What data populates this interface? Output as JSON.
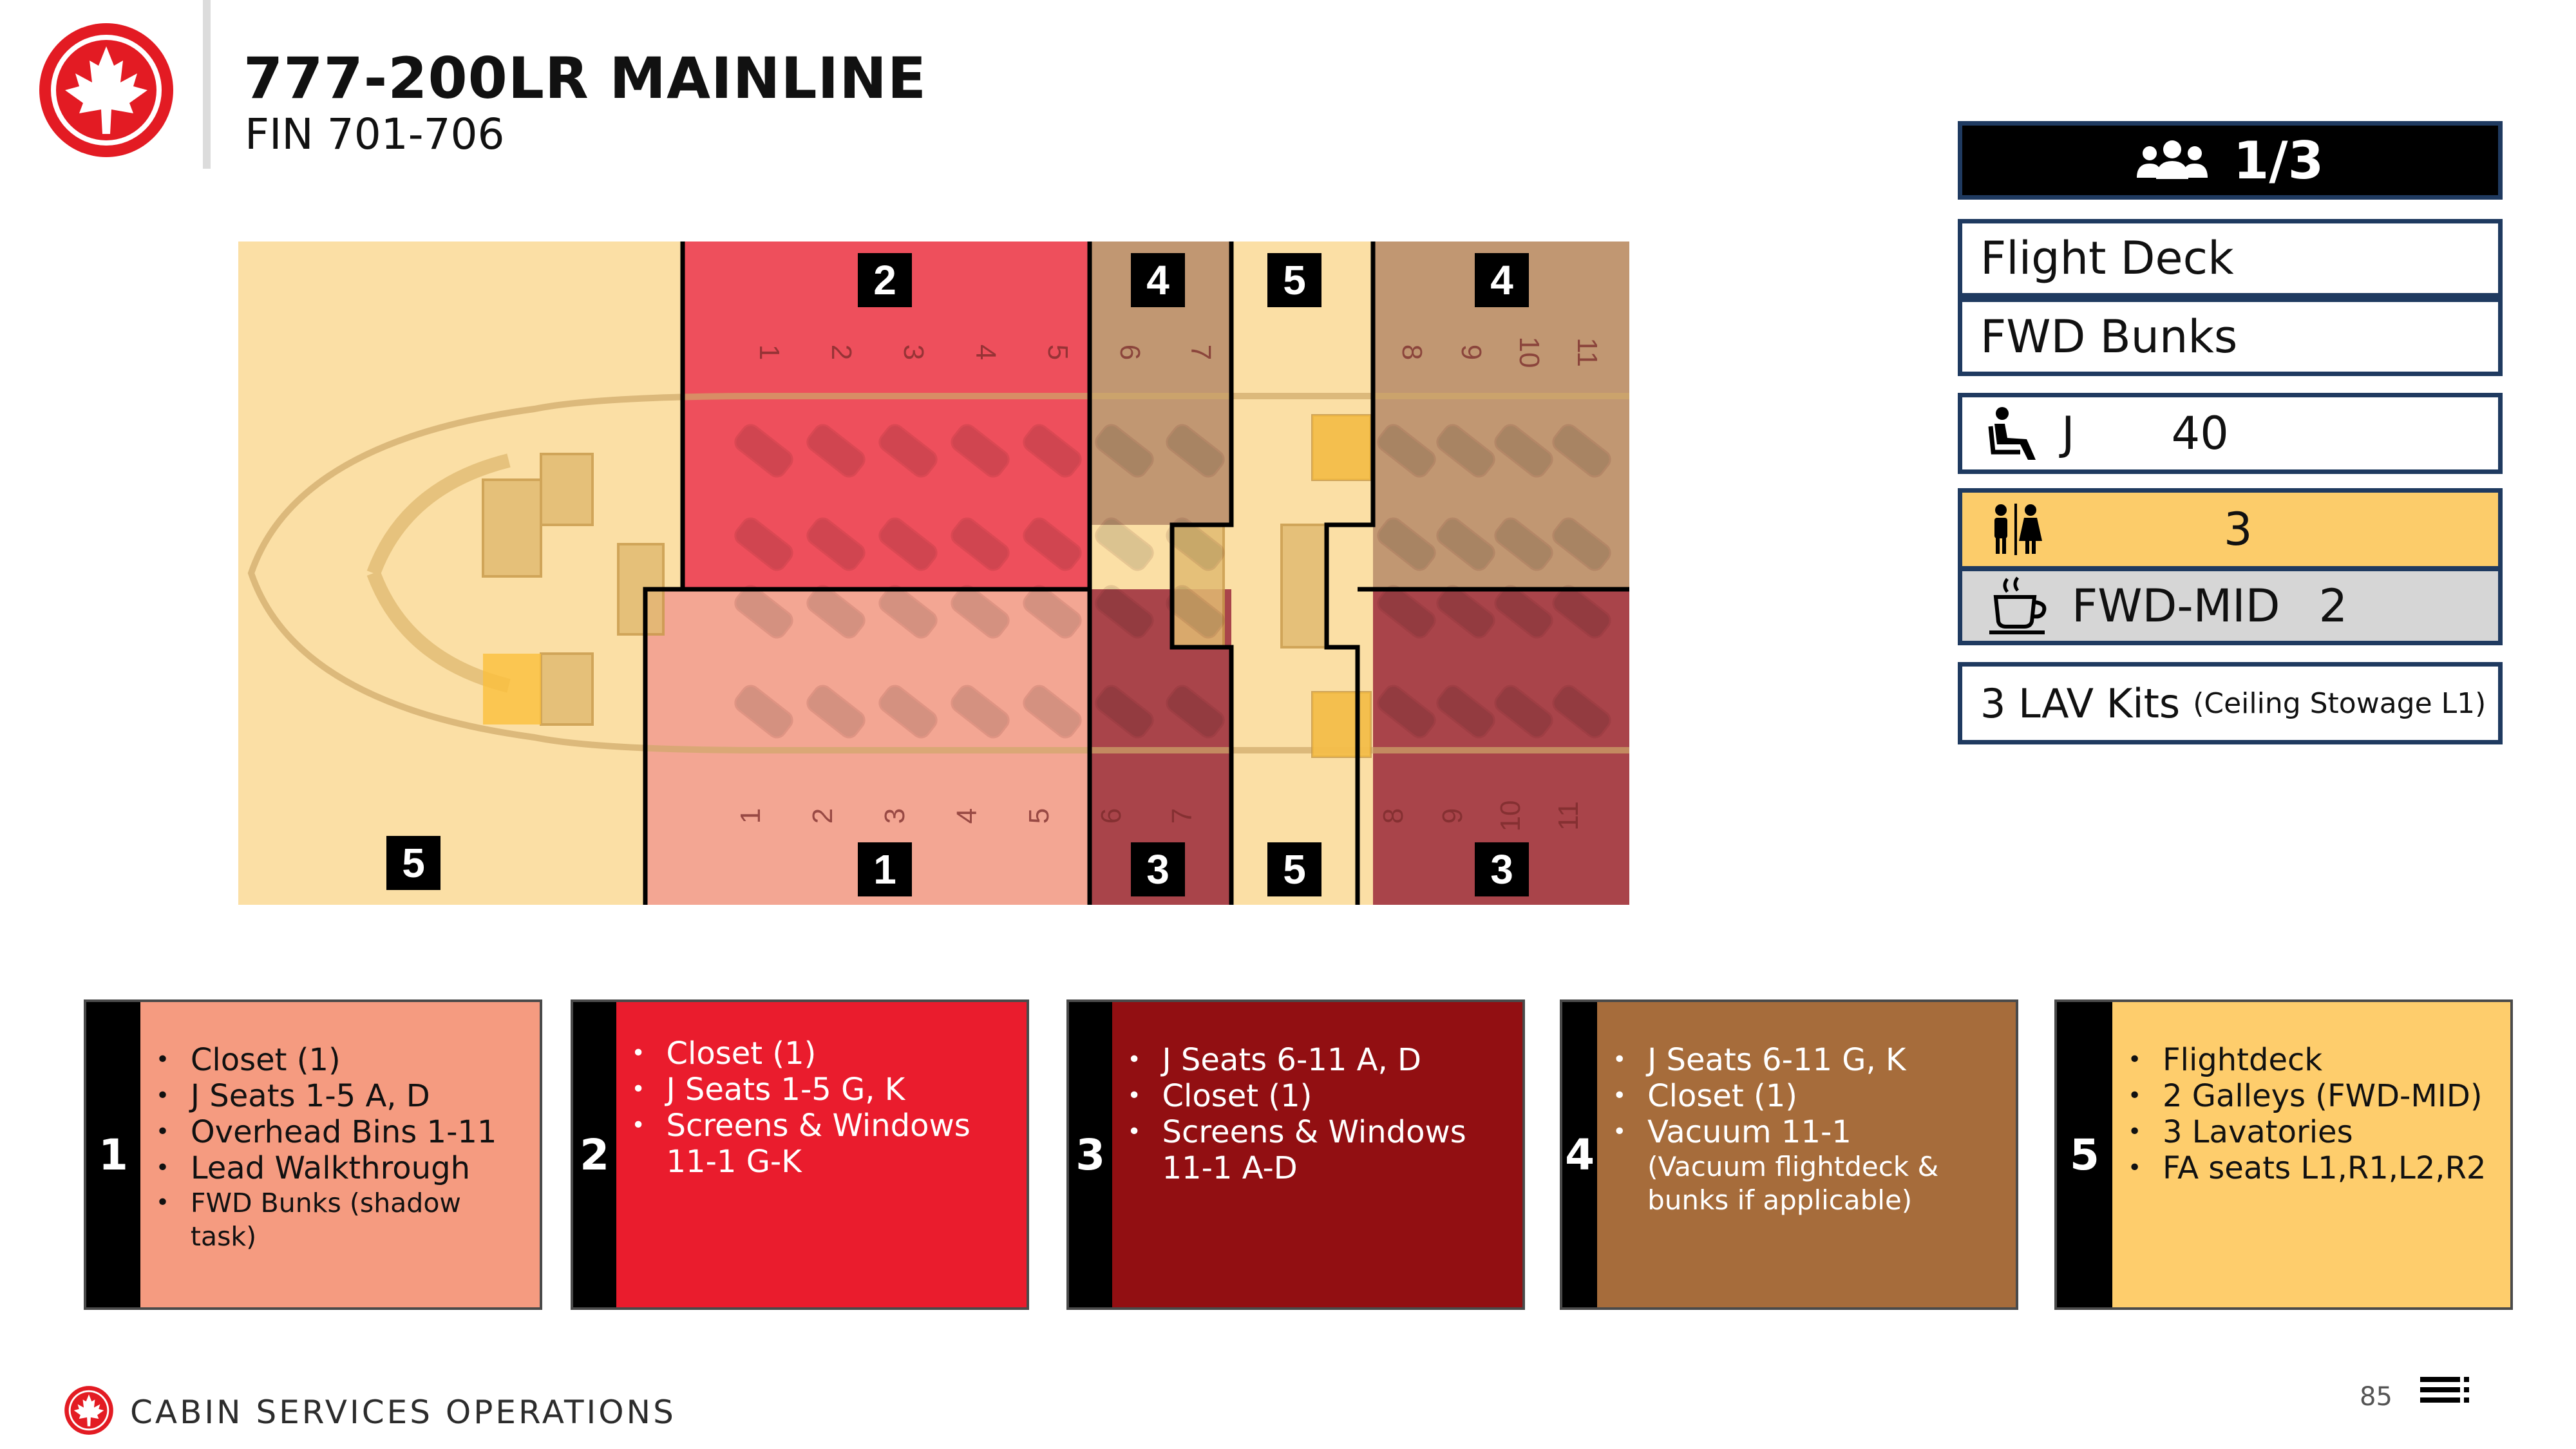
{
  "header": {
    "title": "777-200LR MAINLINE",
    "subtitle": "FIN 701-706"
  },
  "seat_map": {
    "zone_labels": [
      "2",
      "4",
      "5",
      "4",
      "5",
      "1",
      "3",
      "5",
      "3"
    ],
    "top_row_numbers": [
      "1",
      "2",
      "3",
      "4",
      "5",
      "6",
      "7",
      "8",
      "9",
      "10",
      "11"
    ],
    "bottom_row_numbers": [
      "1",
      "2",
      "3",
      "4",
      "5",
      "6",
      "7",
      "8",
      "9",
      "10",
      "11"
    ],
    "zone_colors": {
      "1": "#f3a693",
      "2": "#ee4f5c",
      "3": "#a9444a",
      "4": "#c19772",
      "5": "#fbdfa5"
    }
  },
  "info_panel": {
    "crew_icon": "group-icon",
    "crew_ratio": "1/3",
    "flight_deck": "Flight Deck",
    "fwd_bunks": "FWD Bunks",
    "seat_icon": "seat-icon",
    "seat_class": "J",
    "seat_count": "40",
    "lav_icon": "restroom-icon",
    "lav_count": "3",
    "galley_icon": "coffee-cup-icon",
    "galley_label": "FWD-MID",
    "galley_count": "2",
    "lav_kits": "3 LAV Kits",
    "lav_kits_note": "(Ceiling Stowage L1)"
  },
  "zones": [
    {
      "number": "1",
      "color": "#f59b80",
      "items": [
        "Closet (1)",
        "J Seats 1-5 A, D",
        "Overhead Bins 1-11",
        "Lead Walkthrough",
        "FWD Bunks (shadow task)"
      ]
    },
    {
      "number": "2",
      "color": "#ea1c2d",
      "items": [
        "Closet (1)",
        "J Seats 1-5 G, K",
        "Screens & Windows 11-1 G-K"
      ]
    },
    {
      "number": "3",
      "color": "#920f12",
      "items": [
        "J Seats 6-11 A, D",
        "Closet (1)",
        "Screens & Windows 11-1 A-D"
      ]
    },
    {
      "number": "4",
      "color": "#a66c3b",
      "items": [
        "J Seats 6-11 G, K",
        "Closet (1)",
        "Vacuum 11-1"
      ],
      "note": "(Vacuum flightdeck & bunks if applicable)"
    },
    {
      "number": "5",
      "color": "#fecd6c",
      "items": [
        "Flightdeck",
        "2 Galleys (FWD-MID)",
        "3 Lavatories",
        "FA seats L1,R1,L2,R2"
      ]
    }
  ],
  "footer": {
    "label": "CABIN SERVICES OPERATIONS",
    "page_number": "85"
  }
}
